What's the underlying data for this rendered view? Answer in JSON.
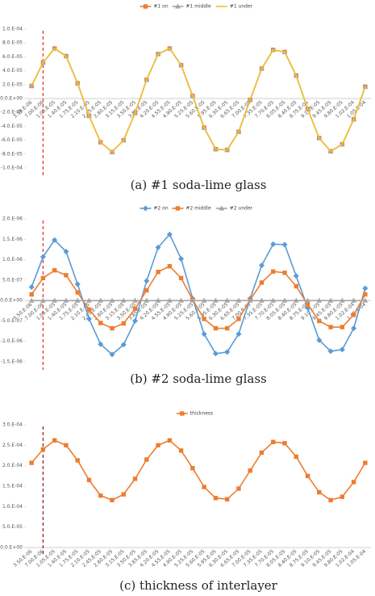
{
  "chart_data": [
    {
      "type": "line",
      "caption": "(a)  #1 soda-lime glass",
      "categories": [
        "3.50.E-06",
        "7.00.E-06",
        "1.05.E-05",
        "1.40.E-05",
        "1.75.E-05",
        "2.10.E-05",
        "2.45.E-05",
        "2.80.E-05",
        "3.15.E-05",
        "3.50.E-05",
        "3.85.E-05",
        "4.20.E-05",
        "4.55.E-05",
        "4.90.E-05",
        "5.25.E-05",
        "5.60.E-05",
        "5.95.E-05",
        "6.30.E-05",
        "6.65.E-05",
        "7.00.E-05",
        "7.35.E-05",
        "7.70.E-05",
        "8.05.E-05",
        "8.40.E-05",
        "8.75.E-05",
        "9.10.E-05",
        "9.45.E-05",
        "9.80.E-05",
        "1.02.E-04",
        "1.05.E-04"
      ],
      "series": [
        {
          "name": "#1 on",
          "color": "#ed7d31",
          "marker": "square",
          "values": [
            1.8e-05,
            5.2e-05,
            7.2e-05,
            6.1e-05,
            2.2e-05,
            -2.5e-05,
            -6.3e-05,
            -7.7e-05,
            -6e-05,
            -2.1e-05,
            2.7e-05,
            6.4e-05,
            7.2e-05,
            4.8e-05,
            4e-06,
            -4.2e-05,
            -7.3e-05,
            -7.4e-05,
            -4.8e-05,
            -2e-06,
            4.3e-05,
            7e-05,
            6.7e-05,
            3.3e-05,
            -1.5e-05,
            -5.7e-05,
            -7.6e-05,
            -6.6e-05,
            -3e-05,
            1.7e-05
          ]
        },
        {
          "name": "#1 middle",
          "color": "#a5a5a5",
          "marker": "triangle",
          "values": [
            1.8e-05,
            5.2e-05,
            7.2e-05,
            6.1e-05,
            2.2e-05,
            -2.5e-05,
            -6.3e-05,
            -7.7e-05,
            -6e-05,
            -2.1e-05,
            2.7e-05,
            6.4e-05,
            7.2e-05,
            4.8e-05,
            4e-06,
            -4.2e-05,
            -7.3e-05,
            -7.4e-05,
            -4.8e-05,
            -2e-06,
            4.3e-05,
            7e-05,
            6.7e-05,
            3.3e-05,
            -1.5e-05,
            -5.7e-05,
            -7.6e-05,
            -6.6e-05,
            -3e-05,
            1.7e-05
          ]
        },
        {
          "name": "#1 under",
          "color": "#f2c12e",
          "marker": "none",
          "values": [
            1.8e-05,
            5.2e-05,
            7.2e-05,
            6.1e-05,
            2.2e-05,
            -2.5e-05,
            -6.3e-05,
            -7.7e-05,
            -6e-05,
            -2.1e-05,
            2.7e-05,
            6.4e-05,
            7.2e-05,
            4.8e-05,
            4e-06,
            -4.2e-05,
            -7.3e-05,
            -7.4e-05,
            -4.8e-05,
            -2e-06,
            4.3e-05,
            7e-05,
            6.7e-05,
            3.3e-05,
            -1.5e-05,
            -5.7e-05,
            -7.6e-05,
            -6.6e-05,
            -3e-05,
            1.7e-05
          ]
        }
      ],
      "ylim": [
        -0.0001,
        0.0001
      ],
      "yticks": [
        {
          "value": 0.0001,
          "label": "1.0.E-04"
        },
        {
          "value": 8e-05,
          "label": "8.0.E-05"
        },
        {
          "value": 6e-05,
          "label": "6.0.E-05"
        },
        {
          "value": 4e-05,
          "label": "4.0.E-05"
        },
        {
          "value": 2e-05,
          "label": "2.0.E-05"
        },
        {
          "value": 0,
          "label": "0.0.E+00"
        },
        {
          "value": -2e-05,
          "label": "-2.0.E-05"
        },
        {
          "value": -4e-05,
          "label": "-4.0.E-05"
        },
        {
          "value": -6e-05,
          "label": "-6.0.E-05"
        },
        {
          "value": -8e-05,
          "label": "-8.0.E-05"
        },
        {
          "value": -0.0001,
          "label": "-1.0.E-04"
        }
      ],
      "grid": false,
      "legend": "top",
      "vline": {
        "category": "7.00.E-06",
        "color": "#e03030"
      }
    },
    {
      "type": "line",
      "caption": "(b)  #2 soda-lime glass",
      "categories": [
        "3.50.E-06",
        "7.00.E-06",
        "1.05.E-05",
        "1.40.E-05",
        "1.75.E-05",
        "2.10.E-05",
        "2.45.E-05",
        "2.80.E-05",
        "3.15.E-05",
        "3.50.E-05",
        "3.85.E-05",
        "4.20.E-05",
        "4.55.E-05",
        "4.90.E-05",
        "5.25.E-05",
        "5.60.E-05",
        "5.95.E-05",
        "6.30.E-05",
        "6.65.E-05",
        "7.00.E-05",
        "7.35.E-05",
        "7.70.E-05",
        "8.05.E-05",
        "8.40.E-05",
        "8.75.E-05",
        "9.10.E-05",
        "9.45.E-05",
        "9.80.E-05",
        "1.02.E-04",
        "1.05.E-04"
      ],
      "series": [
        {
          "name": "#2 on",
          "color": "#5b9bd5",
          "marker": "diamond",
          "values": [
            3.3e-07,
            1.07e-06,
            1.48e-06,
            1.2e-06,
            4e-07,
            -4.5e-07,
            -1.07e-06,
            -1.32e-06,
            -1.08e-06,
            -5e-07,
            4.8e-07,
            1.3e-06,
            1.62e-06,
            1.02e-06,
            5e-08,
            -8.2e-07,
            -1.3e-06,
            -1.26e-06,
            -8.2e-07,
            5e-08,
            8.6e-07,
            1.38e-06,
            1.37e-06,
            6e-07,
            -1.8e-07,
            -9.7e-07,
            -1.24e-06,
            -1.2e-06,
            -6.8e-07,
            3e-07
          ]
        },
        {
          "name": "#2 middle",
          "color": "#ed7d31",
          "marker": "square",
          "values": [
            1.5e-07,
            5.5e-07,
            7.4e-07,
            6.2e-07,
            2e-07,
            -2.2e-07,
            -5.5e-07,
            -6.8e-07,
            -5.6e-07,
            -2e-07,
            2.5e-07,
            7e-07,
            8.4e-07,
            5.5e-07,
            2e-08,
            -4.5e-07,
            -6.8e-07,
            -6.8e-07,
            -4.5e-07,
            2e-08,
            4.4e-07,
            7.1e-07,
            6.8e-07,
            3.5e-07,
            -1e-07,
            -5e-07,
            -6.5e-07,
            -6.5e-07,
            -3.5e-07,
            1.5e-07
          ]
        },
        {
          "name": "#2 under",
          "color": "#a5a5a5",
          "marker": "triangle",
          "values": [
            0,
            0,
            0,
            0,
            0,
            0,
            0,
            0,
            0,
            0,
            0,
            0,
            0,
            0,
            0,
            0,
            0,
            0,
            0,
            0,
            0,
            0,
            0,
            0,
            0,
            0,
            0,
            0,
            0,
            0
          ]
        }
      ],
      "ylim": [
        -1.5e-06,
        2e-06
      ],
      "yticks": [
        {
          "value": 2e-06,
          "label": "2.0.E-06"
        },
        {
          "value": 1.5e-06,
          "label": "1.5.E-06"
        },
        {
          "value": 1e-06,
          "label": "1.0.E-06"
        },
        {
          "value": 5e-07,
          "label": "5.0.E-07"
        },
        {
          "value": 0,
          "label": "0.0.E+00"
        },
        {
          "value": -5e-07,
          "label": "-5.0.E-07"
        },
        {
          "value": -1e-06,
          "label": "-1.0.E-06"
        },
        {
          "value": -1.5e-06,
          "label": "-1.5.E-06"
        }
      ],
      "grid": false,
      "legend": "top",
      "vline": {
        "category": "7.00.E-06",
        "color": "#e03030"
      }
    },
    {
      "type": "line",
      "caption": "(c) thickness of interlayer",
      "categories": [
        "3.50.E-06",
        "7.00.E-06",
        "1.05.E-05",
        "1.40.E-05",
        "1.75.E-05",
        "2.10.E-05",
        "2.45.E-05",
        "2.80.E-05",
        "3.15.E-05",
        "3.50.E-05",
        "3.85.E-05",
        "4.20.E-05",
        "4.55.E-05",
        "4.90.E-05",
        "5.25.E-05",
        "5.60.E-05",
        "5.95.E-05",
        "6.30.E-05",
        "6.65.E-05",
        "7.00.E-05",
        "7.35.E-05",
        "7.70.E-05",
        "8.05.E-05",
        "8.40.E-05",
        "8.75.E-05",
        "9.10.E-05",
        "9.45.E-05",
        "9.80.E-05",
        "1.02.E-04",
        "1.05.E-04"
      ],
      "series": [
        {
          "name": "thickness",
          "color": "#ed7d31",
          "marker": "square",
          "values": [
            0.000207,
            0.00024,
            0.000262,
            0.00025,
            0.000213,
            0.000165,
            0.000127,
            0.000116,
            0.00013,
            0.000168,
            0.000215,
            0.00025,
            0.000262,
            0.000237,
            0.000194,
            0.000148,
            0.000121,
            0.000118,
            0.000144,
            0.000188,
            0.000232,
            0.000258,
            0.000255,
            0.000222,
            0.000175,
            0.000135,
            0.000116,
            0.000124,
            0.00016,
            0.000207
          ]
        }
      ],
      "ylim": [
        0,
        0.0003
      ],
      "yticks": [
        {
          "value": 0.0003,
          "label": "3.0.E-04"
        },
        {
          "value": 0.00025,
          "label": "2.5.E-04"
        },
        {
          "value": 0.0002,
          "label": "2.0.E-04"
        },
        {
          "value": 0.00015,
          "label": "1.5.E-04"
        },
        {
          "value": 0.0001,
          "label": "1.0.E-04"
        },
        {
          "value": 5e-05,
          "label": "5.0.E-05"
        },
        {
          "value": 0,
          "label": "0.0.E+00"
        }
      ],
      "grid": false,
      "legend": "top",
      "vline": {
        "category": "7.00.E-06",
        "color": "#8b1a1a"
      }
    }
  ]
}
